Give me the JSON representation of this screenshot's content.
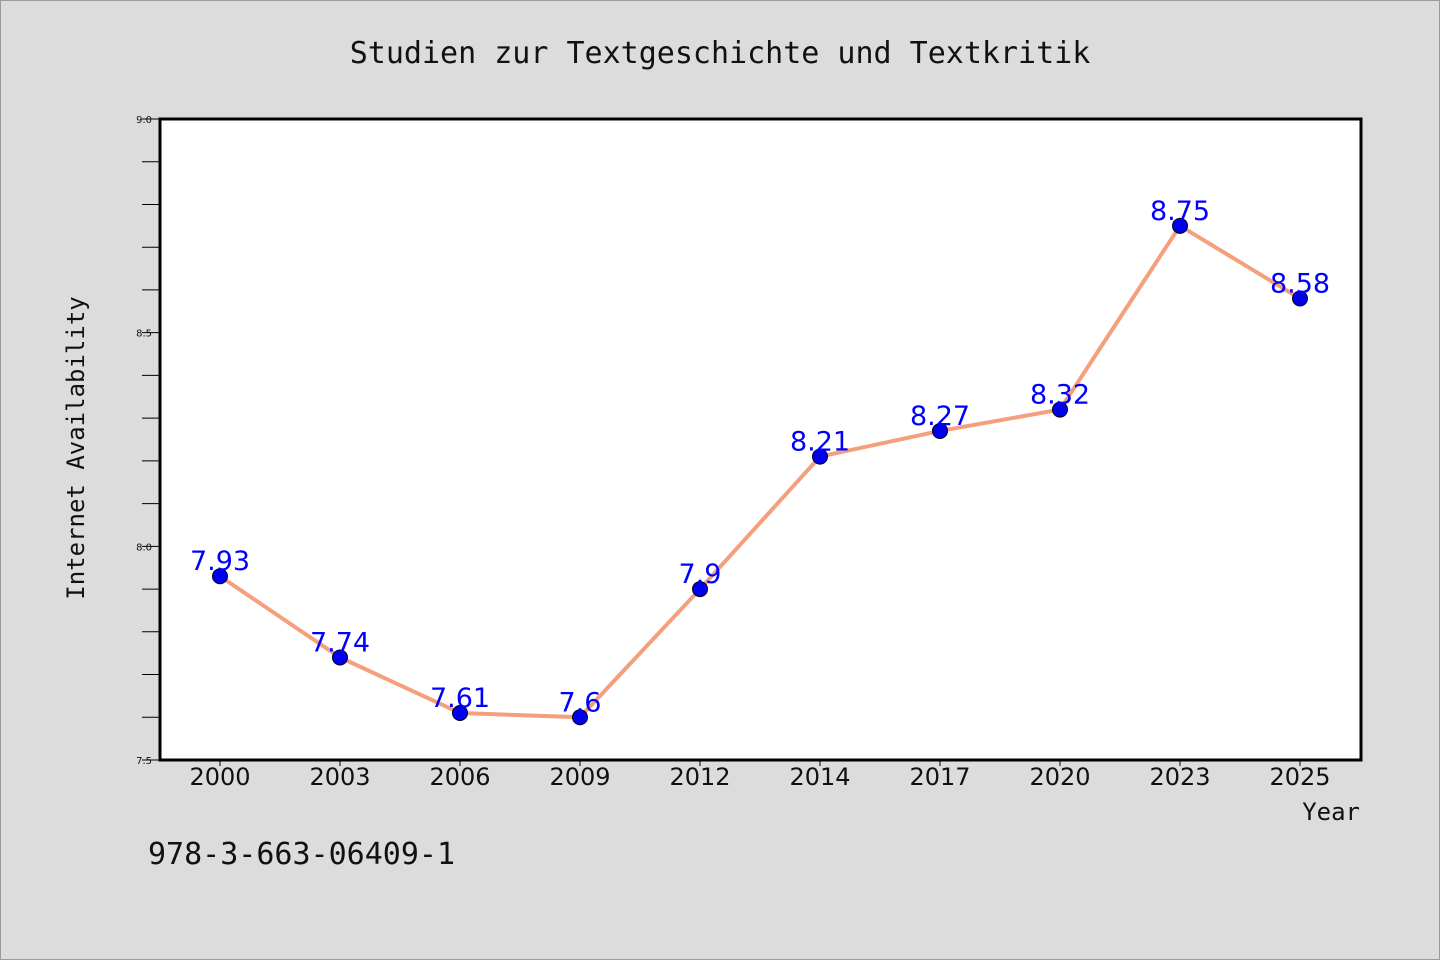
{
  "colors": {
    "background": "#dcdcdc",
    "plot_background": "#ffffff",
    "line": "#f4a07c",
    "marker": "#0000ee",
    "data_label": "#0000ff"
  },
  "footnote": "978-3-663-06409-1",
  "chart_data": {
    "type": "line",
    "title": "Studien zur Textgeschichte und Textkritik",
    "xlabel": "Year",
    "ylabel": "Internet Availability",
    "categories": [
      "2000",
      "2003",
      "2006",
      "2009",
      "2012",
      "2014",
      "2017",
      "2020",
      "2023",
      "2025"
    ],
    "series": [
      {
        "values": [
          7.93,
          7.74,
          7.61,
          7.6,
          7.9,
          8.21,
          8.27,
          8.32,
          8.75,
          8.58
        ],
        "labels": [
          "7.93",
          "7.74",
          "7.61",
          "7.6",
          "7.9",
          "8.21",
          "8.27",
          "8.32",
          "8.75",
          "8.58"
        ]
      }
    ],
    "ylim": [
      7.5,
      9.0
    ],
    "yticks": [
      "7.5",
      "8.0",
      "8.5",
      "9.0"
    ],
    "grid": false,
    "legend": "none"
  }
}
